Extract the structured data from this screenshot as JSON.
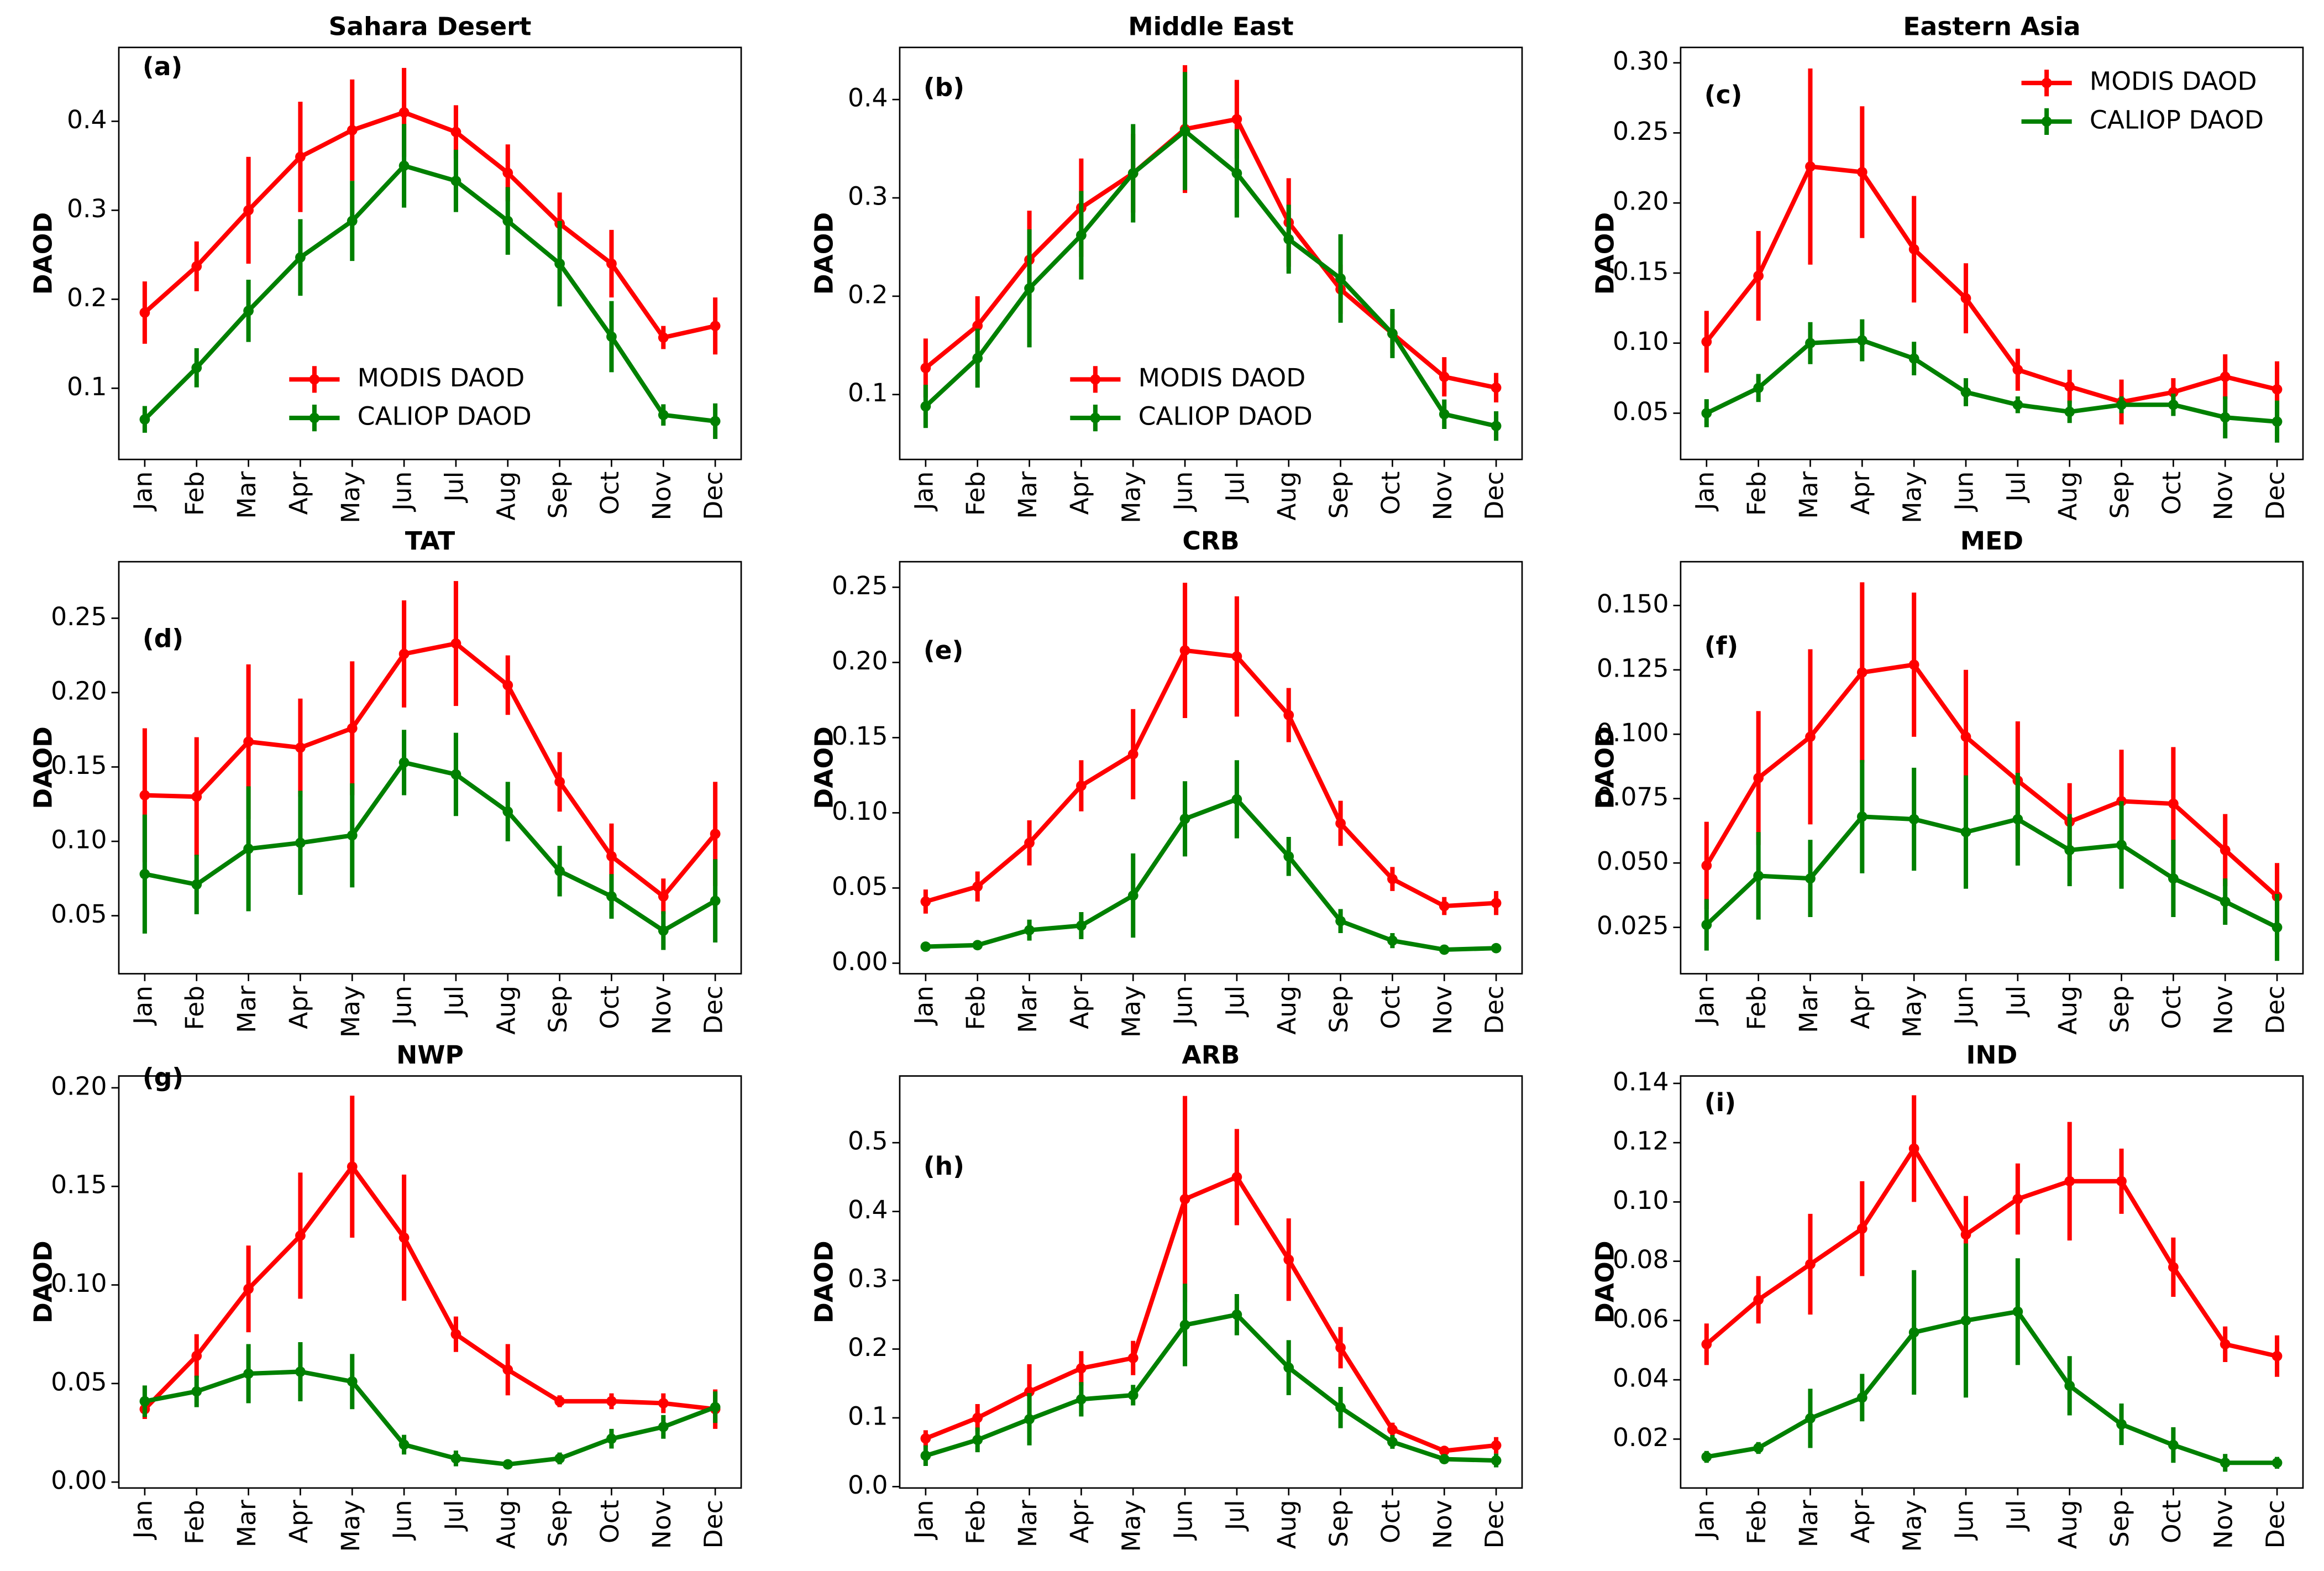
{
  "chart_data": [
    {
      "type": "line",
      "title": "Sahara Desert",
      "panel_label": "(a)",
      "ylabel": "DAOD",
      "categories": [
        "Jan",
        "Feb",
        "Mar",
        "Apr",
        "May",
        "Jun",
        "Jul",
        "Aug",
        "Sep",
        "Oct",
        "Nov",
        "Dec"
      ],
      "series": [
        {
          "name": "MODIS DAOD",
          "color": "#ff0000",
          "values": [
            0.185,
            0.237,
            0.3,
            0.36,
            0.39,
            0.41,
            0.388,
            0.342,
            0.285,
            0.24,
            0.157,
            0.17
          ],
          "errors": [
            0.035,
            0.028,
            0.06,
            0.062,
            0.057,
            0.05,
            0.03,
            0.032,
            0.035,
            0.038,
            0.013,
            0.032
          ]
        },
        {
          "name": "CALIOP DAOD",
          "color": "#008000",
          "values": [
            0.065,
            0.123,
            0.187,
            0.247,
            0.288,
            0.35,
            0.333,
            0.288,
            0.24,
            0.158,
            0.07,
            0.063
          ],
          "errors": [
            0.015,
            0.022,
            0.035,
            0.043,
            0.045,
            0.047,
            0.035,
            0.038,
            0.048,
            0.04,
            0.012,
            0.02
          ]
        }
      ],
      "ylim": [
        0.02,
        0.483
      ],
      "yticks": [
        0.1,
        0.2,
        0.3,
        0.4
      ],
      "legend": "lower center"
    },
    {
      "type": "line",
      "title": "Middle East",
      "panel_label": "(b)",
      "ylabel": "DAOD",
      "categories": [
        "Jan",
        "Feb",
        "Mar",
        "Apr",
        "May",
        "Jun",
        "Jul",
        "Aug",
        "Sep",
        "Oct",
        "Nov",
        "Dec"
      ],
      "series": [
        {
          "name": "MODIS DAOD",
          "color": "#ff0000",
          "values": [
            0.127,
            0.17,
            0.237,
            0.29,
            0.325,
            0.37,
            0.38,
            0.275,
            0.207,
            0.162,
            0.118,
            0.107
          ],
          "errors": [
            0.03,
            0.03,
            0.05,
            0.05,
            0.04,
            0.065,
            0.04,
            0.045,
            0.025,
            0.02,
            0.02,
            0.015
          ]
        },
        {
          "name": "CALIOP DAOD",
          "color": "#008000",
          "values": [
            0.088,
            0.137,
            0.208,
            0.262,
            0.325,
            0.368,
            0.325,
            0.258,
            0.218,
            0.162,
            0.08,
            0.068
          ],
          "errors": [
            0.022,
            0.03,
            0.06,
            0.045,
            0.05,
            0.06,
            0.045,
            0.035,
            0.045,
            0.025,
            0.015,
            0.015
          ]
        }
      ],
      "ylim": [
        0.034,
        0.453
      ],
      "yticks": [
        0.1,
        0.2,
        0.3,
        0.4
      ],
      "legend": "lower center"
    },
    {
      "type": "line",
      "title": "Eastern Asia",
      "panel_label": "(c)",
      "ylabel": "DAOD",
      "categories": [
        "Jan",
        "Feb",
        "Mar",
        "Apr",
        "May",
        "Jun",
        "Jul",
        "Aug",
        "Sep",
        "Oct",
        "Nov",
        "Dec"
      ],
      "series": [
        {
          "name": "MODIS DAOD",
          "color": "#ff0000",
          "values": [
            0.101,
            0.148,
            0.226,
            0.222,
            0.167,
            0.132,
            0.081,
            0.069,
            0.058,
            0.065,
            0.076,
            0.067
          ],
          "errors": [
            0.022,
            0.032,
            0.07,
            0.047,
            0.038,
            0.025,
            0.015,
            0.012,
            0.016,
            0.01,
            0.016,
            0.02
          ]
        },
        {
          "name": "CALIOP DAOD",
          "color": "#008000",
          "values": [
            0.05,
            0.068,
            0.1,
            0.102,
            0.089,
            0.065,
            0.056,
            0.051,
            0.056,
            0.056,
            0.047,
            0.044
          ],
          "errors": [
            0.01,
            0.01,
            0.015,
            0.015,
            0.012,
            0.01,
            0.006,
            0.008,
            0.006,
            0.008,
            0.015,
            0.015
          ]
        }
      ],
      "ylim": [
        0.017,
        0.311
      ],
      "yticks": [
        0.05,
        {
          "value": 0.1,
          "label": "0.10"
        },
        0.15,
        {
          "value": 0.2,
          "label": "0.20"
        },
        0.25,
        {
          "value": 0.3,
          "label": "0.30"
        }
      ],
      "legend": "upper right"
    },
    {
      "type": "line",
      "title": "TAT",
      "panel_label": "(d)",
      "ylabel": "DAOD",
      "categories": [
        "Jan",
        "Feb",
        "Mar",
        "Apr",
        "May",
        "Jun",
        "Jul",
        "Aug",
        "Sep",
        "Oct",
        "Nov",
        "Dec"
      ],
      "series": [
        {
          "color": "#ff0000",
          "values": [
            0.131,
            0.13,
            0.167,
            0.163,
            0.176,
            0.226,
            0.233,
            0.205,
            0.14,
            0.09,
            0.063,
            0.105
          ],
          "errors": [
            0.045,
            0.04,
            0.052,
            0.033,
            0.045,
            0.036,
            0.042,
            0.02,
            0.02,
            0.022,
            0.012,
            0.035
          ]
        },
        {
          "color": "#008000",
          "values": [
            0.078,
            0.071,
            0.095,
            0.099,
            0.104,
            0.153,
            0.145,
            0.12,
            0.08,
            0.063,
            0.04,
            0.06
          ],
          "errors": [
            0.04,
            0.02,
            0.042,
            0.035,
            0.035,
            0.022,
            0.028,
            0.02,
            0.017,
            0.015,
            0.013,
            0.028
          ]
        }
      ],
      "ylim": [
        0.011,
        0.288
      ],
      "yticks": [
        0.05,
        {
          "value": 0.1,
          "label": "0.10"
        },
        0.15,
        {
          "value": 0.2,
          "label": "0.20"
        },
        0.25
      ]
    },
    {
      "type": "line",
      "title": "CRB",
      "panel_label": "(e)",
      "ylabel": "DAOD",
      "categories": [
        "Jan",
        "Feb",
        "Mar",
        "Apr",
        "May",
        "Jun",
        "Jul",
        "Aug",
        "Sep",
        "Oct",
        "Nov",
        "Dec"
      ],
      "series": [
        {
          "color": "#ff0000",
          "values": [
            0.041,
            0.051,
            0.08,
            0.118,
            0.139,
            0.208,
            0.204,
            0.165,
            0.093,
            0.056,
            0.038,
            0.04
          ],
          "errors": [
            0.008,
            0.01,
            0.015,
            0.017,
            0.03,
            0.045,
            0.04,
            0.018,
            0.015,
            0.008,
            0.006,
            0.008
          ]
        },
        {
          "color": "#008000",
          "values": [
            0.011,
            0.012,
            0.022,
            0.025,
            0.045,
            0.096,
            0.109,
            0.071,
            0.028,
            0.015,
            0.009,
            0.01
          ],
          "errors": [
            0.002,
            0.002,
            0.007,
            0.009,
            0.028,
            0.025,
            0.026,
            0.013,
            0.008,
            0.005,
            0.002,
            0.002
          ]
        }
      ],
      "ylim": [
        -0.007,
        0.267
      ],
      "yticks": [
        {
          "value": 0,
          "label": "0.00"
        },
        0.05,
        {
          "value": 0.1,
          "label": "0.10"
        },
        0.15,
        {
          "value": 0.2,
          "label": "0.20"
        },
        0.25
      ]
    },
    {
      "type": "line",
      "title": "MED",
      "panel_label": "(f)",
      "ylabel": "DAOD",
      "categories": [
        "Jan",
        "Feb",
        "Mar",
        "Apr",
        "May",
        "Jun",
        "Jul",
        "Aug",
        "Sep",
        "Oct",
        "Nov",
        "Dec"
      ],
      "series": [
        {
          "color": "#ff0000",
          "values": [
            0.049,
            0.083,
            0.099,
            0.124,
            0.127,
            0.099,
            0.082,
            0.066,
            0.074,
            0.073,
            0.055,
            0.037
          ],
          "errors": [
            0.017,
            0.026,
            0.034,
            0.035,
            0.028,
            0.026,
            0.023,
            0.015,
            0.02,
            0.022,
            0.014,
            0.013
          ]
        },
        {
          "color": "#008000",
          "values": [
            0.026,
            0.045,
            0.044,
            0.068,
            0.067,
            0.062,
            0.067,
            0.055,
            0.057,
            0.044,
            0.035,
            0.025
          ],
          "errors": [
            0.01,
            0.017,
            0.015,
            0.022,
            0.02,
            0.022,
            0.018,
            0.014,
            0.017,
            0.015,
            0.009,
            0.013
          ]
        }
      ],
      "ylim": [
        0.007,
        0.167
      ],
      "yticks": [
        0.025,
        {
          "value": 0.05,
          "label": "0.050"
        },
        0.075,
        {
          "value": 0.1,
          "label": "0.100"
        },
        0.125,
        {
          "value": 0.15,
          "label": "0.150"
        }
      ]
    },
    {
      "type": "line",
      "title": "NWP",
      "panel_label": "(g)",
      "ylabel": "DAOD",
      "categories": [
        "Jan",
        "Feb",
        "Mar",
        "Apr",
        "May",
        "Jun",
        "Jul",
        "Aug",
        "Sep",
        "Oct",
        "Nov",
        "Dec"
      ],
      "series": [
        {
          "color": "#ff0000",
          "values": [
            0.037,
            0.064,
            0.098,
            0.125,
            0.16,
            0.124,
            0.075,
            0.057,
            0.041,
            0.041,
            0.04,
            0.037
          ],
          "errors": [
            0.005,
            0.011,
            0.022,
            0.032,
            0.036,
            0.032,
            0.009,
            0.013,
            0.003,
            0.004,
            0.005,
            0.01
          ]
        },
        {
          "color": "#008000",
          "values": [
            0.041,
            0.046,
            0.055,
            0.056,
            0.051,
            0.019,
            0.012,
            0.009,
            0.012,
            0.022,
            0.028,
            0.038
          ],
          "errors": [
            0.008,
            0.008,
            0.015,
            0.015,
            0.014,
            0.005,
            0.004,
            0.002,
            0.003,
            0.005,
            0.006,
            0.008
          ]
        }
      ],
      "ylim": [
        -0.003,
        0.206
      ],
      "yticks": [
        {
          "value": 0,
          "label": "0.00"
        },
        0.05,
        {
          "value": 0.1,
          "label": "0.10"
        },
        0.15,
        {
          "value": 0.2,
          "label": "0.20"
        }
      ]
    },
    {
      "type": "line",
      "title": "ARB",
      "panel_label": "(h)",
      "ylabel": "DAOD",
      "categories": [
        "Jan",
        "Feb",
        "Mar",
        "Apr",
        "May",
        "Jun",
        "Jul",
        "Aug",
        "Sep",
        "Oct",
        "Nov",
        "Dec"
      ],
      "series": [
        {
          "color": "#ff0000",
          "values": [
            0.07,
            0.1,
            0.138,
            0.172,
            0.187,
            0.418,
            0.45,
            0.33,
            0.202,
            0.083,
            0.052,
            0.06
          ],
          "errors": [
            0.012,
            0.02,
            0.04,
            0.025,
            0.025,
            0.15,
            0.07,
            0.06,
            0.03,
            0.01,
            0.005,
            0.012
          ]
        },
        {
          "color": "#008000",
          "values": [
            0.045,
            0.068,
            0.098,
            0.127,
            0.133,
            0.235,
            0.25,
            0.173,
            0.115,
            0.065,
            0.04,
            0.038
          ],
          "errors": [
            0.015,
            0.018,
            0.038,
            0.025,
            0.015,
            0.06,
            0.03,
            0.04,
            0.03,
            0.01,
            0.005,
            0.01
          ]
        }
      ],
      "ylim": [
        -0.002,
        0.597
      ],
      "yticks": [
        {
          "value": 0,
          "label": "0.0"
        },
        0.1,
        0.2,
        0.3,
        0.4,
        0.5
      ]
    },
    {
      "type": "line",
      "title": "IND",
      "panel_label": "(i)",
      "ylabel": "DAOD",
      "categories": [
        "Jan",
        "Feb",
        "Mar",
        "Apr",
        "May",
        "Jun",
        "Jul",
        "Aug",
        "Sep",
        "Oct",
        "Nov",
        "Dec"
      ],
      "series": [
        {
          "color": "#ff0000",
          "values": [
            0.052,
            0.067,
            0.079,
            0.091,
            0.118,
            0.089,
            0.101,
            0.107,
            0.107,
            0.078,
            0.052,
            0.048
          ],
          "errors": [
            0.007,
            0.008,
            0.017,
            0.016,
            0.018,
            0.013,
            0.012,
            0.02,
            0.011,
            0.01,
            0.006,
            0.007
          ]
        },
        {
          "color": "#008000",
          "values": [
            0.014,
            0.017,
            0.027,
            0.034,
            0.056,
            0.06,
            0.063,
            0.038,
            0.025,
            0.018,
            0.012,
            0.012
          ],
          "errors": [
            0.002,
            0.002,
            0.01,
            0.008,
            0.021,
            0.026,
            0.018,
            0.01,
            0.007,
            0.006,
            0.003,
            0.002
          ]
        }
      ],
      "ylim": [
        0.0035,
        0.1425
      ],
      "yticks": [
        0.02,
        0.04,
        0.06,
        0.08,
        {
          "value": 0.1,
          "label": "0.10"
        },
        0.12,
        0.14
      ]
    }
  ]
}
